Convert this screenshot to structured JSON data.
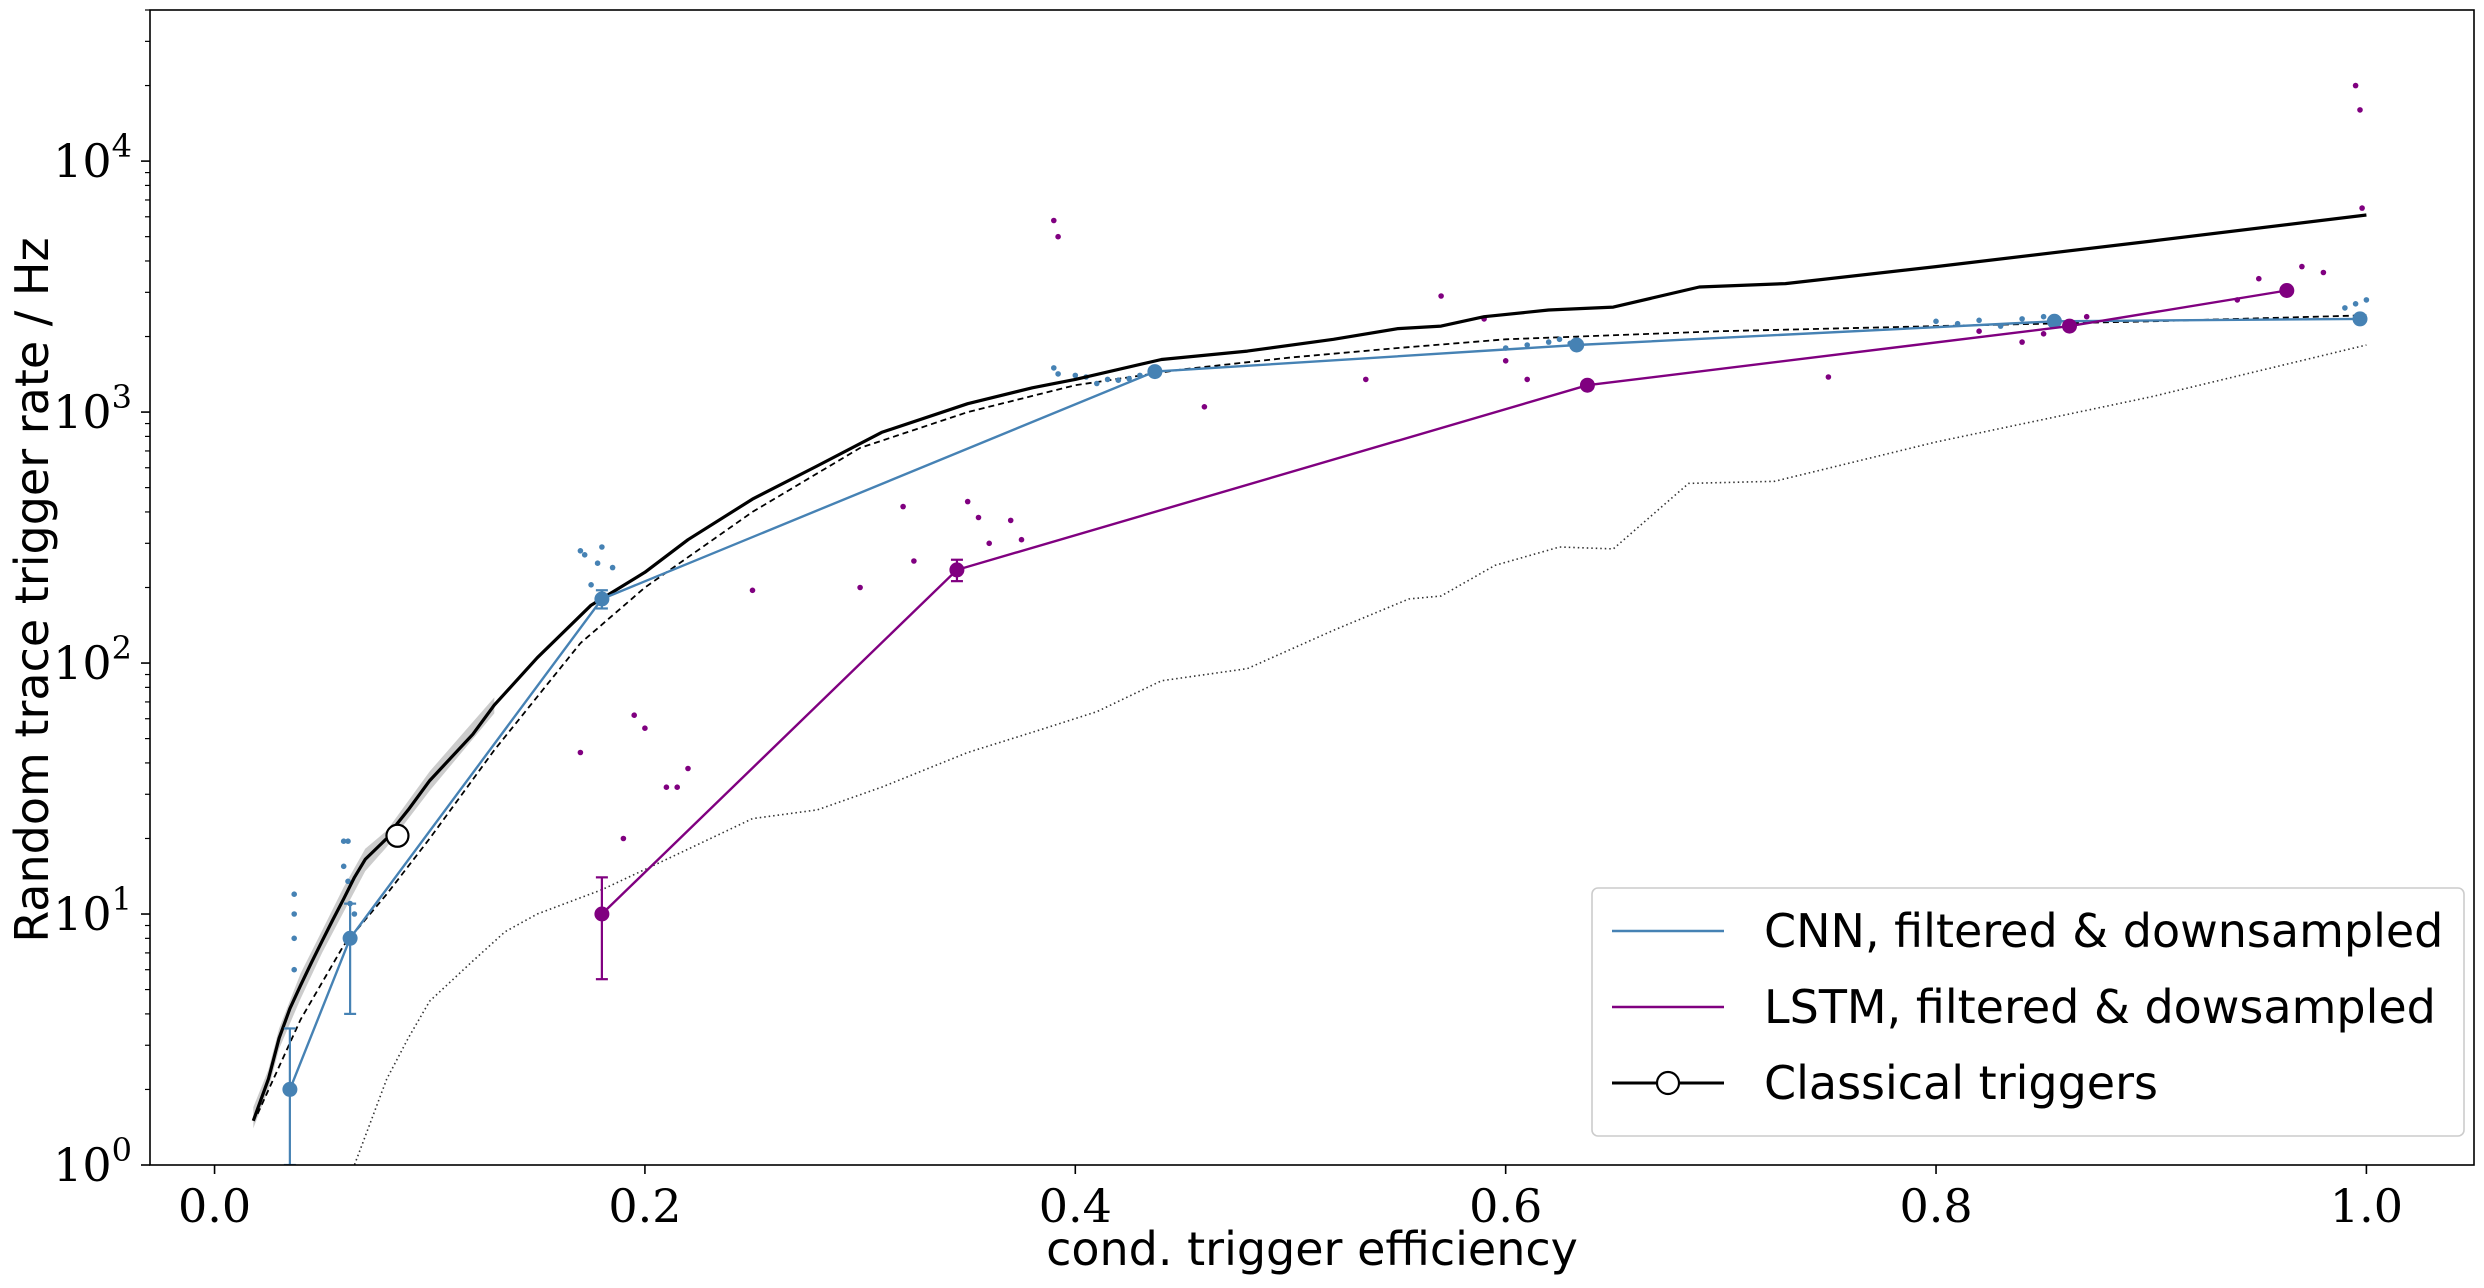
{
  "chart_data": {
    "type": "line",
    "xlabel": "cond. trigger efficiency",
    "ylabel": "Random trace trigger rate / Hz",
    "xlim": [
      -0.03,
      1.05
    ],
    "ylim": [
      1,
      40000
    ],
    "y_scale": "log",
    "x_ticks": [
      0.0,
      0.2,
      0.4,
      0.6,
      0.8,
      1.0
    ],
    "x_tick_labels": [
      "0.0",
      "0.2",
      "0.4",
      "0.6",
      "0.8",
      "1.0"
    ],
    "y_ticks": [
      1,
      10,
      100,
      1000,
      10000
    ],
    "y_tick_labels": [
      {
        "base": "10",
        "exp": "0"
      },
      {
        "base": "10",
        "exp": "1"
      },
      {
        "base": "10",
        "exp": "2"
      },
      {
        "base": "10",
        "exp": "3"
      },
      {
        "base": "10",
        "exp": "4"
      }
    ],
    "grid": false,
    "legend_position": "lower-right",
    "colors": {
      "cnn": "#4682b4",
      "lstm": "#800080",
      "classical": "#000000"
    },
    "series": [
      {
        "name": "CNN, filtered & downsampled",
        "key": "cnn",
        "x": [
          0.035,
          0.063,
          0.18,
          0.437,
          0.633,
          0.855,
          0.997
        ],
        "y": [
          2,
          8,
          180,
          1450,
          1850,
          2300,
          2350
        ],
        "yerr_low": [
          1.0,
          4.0,
          165,
          1420,
          1820,
          2270,
          2320
        ],
        "yerr_high": [
          3.5,
          11,
          195,
          1480,
          1880,
          2330,
          2380
        ]
      },
      {
        "name": "LSTM, filtered & dowsampled",
        "key": "lstm",
        "x": [
          0.18,
          0.345,
          0.638,
          0.862,
          0.963
        ],
        "y": [
          10,
          235,
          1280,
          2200,
          3050
        ],
        "yerr_low": [
          5.5,
          212,
          1250,
          2160,
          2980
        ],
        "yerr_high": [
          14,
          258,
          1310,
          2240,
          3120
        ]
      },
      {
        "name": "Classical triggers",
        "key": "classical",
        "x": [
          0.018,
          0.025,
          0.03,
          0.035,
          0.04,
          0.045,
          0.05,
          0.055,
          0.06,
          0.065,
          0.07,
          0.08,
          0.085,
          0.09,
          0.1,
          0.12,
          0.13,
          0.15,
          0.175,
          0.2,
          0.22,
          0.25,
          0.28,
          0.31,
          0.35,
          0.38,
          0.4,
          0.44,
          0.48,
          0.52,
          0.55,
          0.57,
          0.59,
          0.62,
          0.65,
          0.69,
          0.73,
          0.8,
          0.9,
          1.0
        ],
        "y": [
          1.5,
          2.2,
          3.2,
          4.2,
          5.2,
          6.4,
          7.8,
          9.5,
          11.5,
          14,
          16.5,
          20,
          23,
          26,
          34,
          52,
          68,
          105,
          170,
          230,
          310,
          450,
          610,
          830,
          1080,
          1250,
          1350,
          1620,
          1750,
          1950,
          2150,
          2200,
          2400,
          2550,
          2620,
          3150,
          3250,
          3800,
          4800,
          6100
        ],
        "band_x": [
          0.018,
          0.025,
          0.03,
          0.04,
          0.05,
          0.06,
          0.07,
          0.08,
          0.1,
          0.13
        ],
        "band_y_low": [
          1.4,
          2.0,
          2.9,
          4.6,
          7.0,
          10.2,
          14.8,
          18.5,
          31,
          63
        ],
        "band_y_high": [
          1.7,
          2.4,
          3.5,
          5.8,
          8.6,
          12.8,
          18.2,
          21.5,
          37,
          73
        ],
        "marker_point": {
          "x": 0.085,
          "y": 20.5
        }
      }
    ],
    "extra_lines": [
      {
        "style": "dashed",
        "x": [
          0.02,
          0.04,
          0.06,
          0.08,
          0.1,
          0.13,
          0.17,
          0.2,
          0.25,
          0.3,
          0.35,
          0.4,
          0.45,
          0.5,
          0.55,
          0.6,
          0.7,
          0.8,
          0.9,
          1.0
        ],
        "y": [
          1.6,
          3.8,
          7.5,
          12,
          20,
          45,
          120,
          200,
          400,
          720,
          1000,
          1280,
          1480,
          1650,
          1800,
          1950,
          2100,
          2200,
          2300,
          2430
        ]
      },
      {
        "style": "dotted",
        "x": [
          0.06,
          0.065,
          0.07,
          0.08,
          0.09,
          0.1,
          0.12,
          0.135,
          0.15,
          0.18,
          0.21,
          0.25,
          0.28,
          0.31,
          0.35,
          0.38,
          0.41,
          0.44,
          0.48,
          0.52,
          0.555,
          0.57,
          0.595,
          0.625,
          0.65,
          0.685,
          0.725,
          0.8,
          0.9,
          1.0
        ],
        "y": [
          0.8,
          1.0,
          1.3,
          2.2,
          3.2,
          4.5,
          6.5,
          8.5,
          10,
          12.5,
          16.5,
          24,
          26,
          32,
          44,
          53,
          64,
          85,
          95,
          135,
          180,
          185,
          245,
          290,
          285,
          520,
          530,
          760,
          1150,
          1850
        ]
      }
    ],
    "scatter_points": {
      "cnn": {
        "x": [
          0.037,
          0.037,
          0.037,
          0.037,
          0.06,
          0.062,
          0.06,
          0.062,
          0.063,
          0.065,
          0.17,
          0.172,
          0.175,
          0.178,
          0.18,
          0.185,
          0.39,
          0.392,
          0.4,
          0.405,
          0.41,
          0.415,
          0.42,
          0.425,
          0.43,
          0.6,
          0.61,
          0.62,
          0.625,
          0.63,
          0.8,
          0.81,
          0.82,
          0.83,
          0.84,
          0.85,
          0.99,
          0.995,
          1.0
        ],
        "y": [
          12,
          10,
          8,
          6,
          19.5,
          19.5,
          15.5,
          13.5,
          11,
          10,
          280,
          270,
          205,
          250,
          290,
          240,
          1500,
          1420,
          1400,
          1380,
          1300,
          1350,
          1340,
          1360,
          1400,
          1800,
          1850,
          1900,
          1950,
          1880,
          2300,
          2250,
          2320,
          2200,
          2350,
          2400,
          2600,
          2700,
          2800
        ]
      },
      "lstm": {
        "x": [
          0.17,
          0.19,
          0.195,
          0.2,
          0.21,
          0.215,
          0.22,
          0.25,
          0.3,
          0.32,
          0.325,
          0.35,
          0.355,
          0.36,
          0.37,
          0.375,
          0.39,
          0.392,
          0.46,
          0.535,
          0.57,
          0.59,
          0.6,
          0.61,
          0.75,
          0.82,
          0.84,
          0.85,
          0.87,
          0.94,
          0.95,
          0.97,
          0.98,
          0.995,
          0.997,
          0.998
        ],
        "y": [
          44,
          20,
          62,
          55,
          32,
          32,
          38,
          195,
          200,
          420,
          255,
          440,
          380,
          300,
          370,
          310,
          5800,
          5000,
          1050,
          1350,
          2900,
          2350,
          1600,
          1350,
          1380,
          2100,
          1900,
          2050,
          2400,
          2800,
          3400,
          3800,
          3600,
          20000,
          16000,
          6500
        ]
      }
    },
    "legend": [
      {
        "label": "CNN, filtered & downsampled",
        "key": "cnn"
      },
      {
        "label": "LSTM, filtered & dowsampled",
        "key": "lstm"
      },
      {
        "label": "Classical triggers",
        "key": "classical"
      }
    ]
  }
}
